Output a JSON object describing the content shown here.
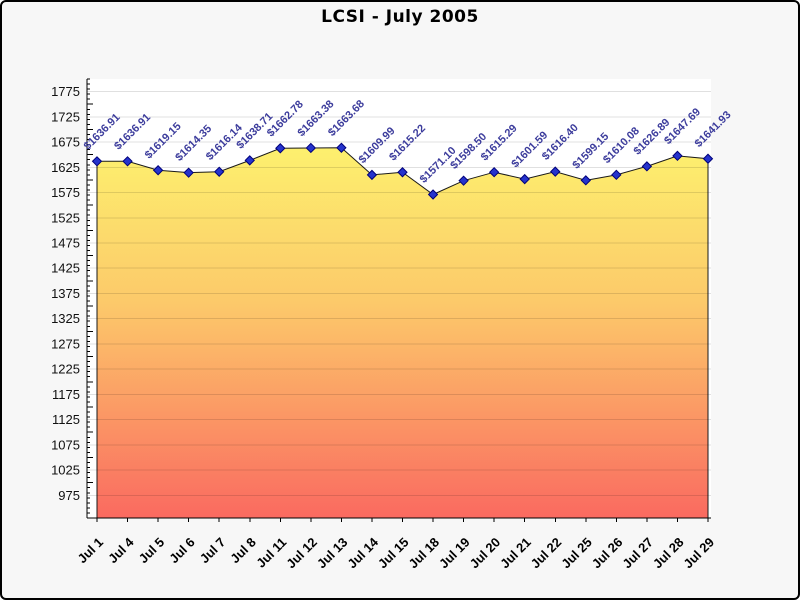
{
  "page": {
    "background": "#f7f7f7",
    "border_color": "#000000"
  },
  "chart_data": {
    "type": "area",
    "title": "LCSI - July 2005",
    "xlabel": "",
    "ylabel": "",
    "legend": "none",
    "grid": "horizontal-major",
    "categories": [
      "Jul 1",
      "Jul 4",
      "Jul 5",
      "Jul 6",
      "Jul 7",
      "Jul 8",
      "Jul 11",
      "Jul 12",
      "Jul 13",
      "Jul 14",
      "Jul 15",
      "Jul 18",
      "Jul 19",
      "Jul 20",
      "Jul 21",
      "Jul 22",
      "Jul 25",
      "Jul 26",
      "Jul 27",
      "Jul 28",
      "Jul 29"
    ],
    "values": [
      1636.91,
      1636.91,
      1619.15,
      1614.35,
      1616.14,
      1638.71,
      1662.78,
      1663.38,
      1663.68,
      1609.99,
      1615.22,
      1571.1,
      1598.5,
      1615.29,
      1601.59,
      1616.4,
      1599.15,
      1610.08,
      1626.89,
      1647.69,
      1641.93
    ],
    "point_labels": [
      "$1636.91",
      "$1636.91",
      "$1619.15",
      "$1614.35",
      "$1616.14",
      "$1638.71",
      "$1662.78",
      "$1663.38",
      "$1663.68",
      "$1609.99",
      "$1615.22",
      "$1571.10",
      "$1598.50",
      "$1615.29",
      "$1601.59",
      "$1616.40",
      "$1599.15",
      "$1610.08",
      "$1626.89",
      "$1647.69",
      "$1641.93"
    ],
    "ylim": [
      930,
      1800
    ],
    "y_tick_min": 975,
    "y_tick_max": 1775,
    "y_major_tick_step": 50,
    "y_minor_tick_step": 10,
    "colors": {
      "area_gradient_top": "#fdf06e",
      "area_gradient_mid": "#fcc96a",
      "area_gradient_bottom": "#fa6a60",
      "line": "#1a1a1a",
      "marker_fill": "#2533cc",
      "marker_stroke": "#00007a",
      "point_label": "#3c3c9c",
      "axis": "#000000",
      "gridline": "rgba(0,0,0,0.12)",
      "plot_background": "#ffffff",
      "tick_label": "#111111"
    }
  }
}
